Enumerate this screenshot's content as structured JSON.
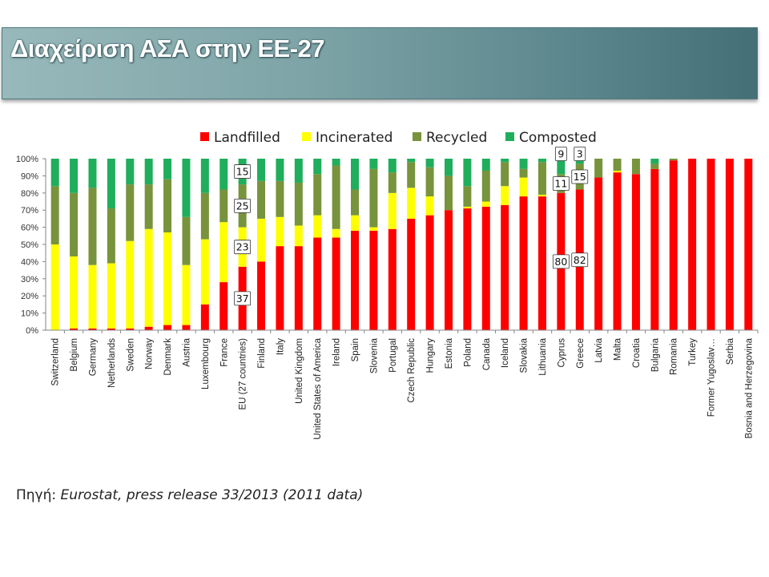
{
  "slide": {
    "title": "Διαχείριση ΑΣΑ στην ΕΕ-27",
    "source_label": "Πηγή",
    "source_sep": ": ",
    "source_text": "Eurostat, press release 33/2013 (2011 data)"
  },
  "chart_data": {
    "type": "bar",
    "stacked": true,
    "normalized_percent": true,
    "ylim": [
      0,
      100
    ],
    "y_ticks": [
      "0%",
      "10%",
      "20%",
      "30%",
      "40%",
      "50%",
      "60%",
      "70%",
      "80%",
      "90%",
      "100%"
    ],
    "grid": false,
    "legend_position": "top",
    "categories": [
      "Switzerland",
      "Belgium",
      "Germany",
      "Netherlands",
      "Sweden",
      "Norway",
      "Denmark",
      "Austria",
      "Luxembourg",
      "France",
      "EU (27 countries)",
      "Finland",
      "Italy",
      "United Kingdom",
      "United States of America",
      "Ireland",
      "Spain",
      "Slovenia",
      "Portugal",
      "Czech Republic",
      "Hungary",
      "Estonia",
      "Poland",
      "Canada",
      "Iceland",
      "Slovakia",
      "Lithuania",
      "Cyprus",
      "Greece",
      "Latvia",
      "Malta",
      "Croatia",
      "Bulgaria",
      "Romania",
      "Turkey",
      "Former Yugoslav…",
      "Serbia",
      "Bosnia and Herzegovina"
    ],
    "series": [
      {
        "name": "Landfilled",
        "color": "#ff0000",
        "values": [
          0,
          1,
          1,
          1,
          1,
          2,
          3,
          3,
          15,
          28,
          37,
          40,
          49,
          49,
          54,
          54,
          58,
          58,
          59,
          65,
          67,
          70,
          71,
          72,
          73,
          78,
          78,
          80,
          82,
          89,
          92,
          91,
          94,
          99,
          100,
          100,
          100,
          100
        ]
      },
      {
        "name": "Incinerated",
        "color": "#ffff00",
        "values": [
          50,
          42,
          37,
          38,
          51,
          57,
          54,
          35,
          38,
          35,
          23,
          25,
          17,
          12,
          13,
          5,
          9,
          2,
          21,
          18,
          11,
          0,
          1,
          3,
          11,
          11,
          1,
          0,
          0,
          0,
          1,
          0,
          0,
          0,
          0,
          0,
          0,
          0
        ]
      },
      {
        "name": "Recycled",
        "color": "#77933c",
        "values": [
          34,
          37,
          45,
          32,
          33,
          26,
          31,
          28,
          27,
          19,
          25,
          22,
          21,
          25,
          24,
          37,
          15,
          34,
          12,
          15,
          17,
          20,
          12,
          18,
          14,
          5,
          19,
          11,
          15,
          11,
          7,
          9,
          3,
          1,
          0,
          0,
          0,
          0
        ]
      },
      {
        "name": "Composted",
        "color": "#1fae5c",
        "values": [
          16,
          20,
          17,
          29,
          15,
          15,
          12,
          34,
          20,
          18,
          15,
          13,
          13,
          14,
          9,
          4,
          18,
          6,
          8,
          2,
          5,
          10,
          16,
          7,
          2,
          6,
          2,
          9,
          3,
          0,
          0,
          0,
          3,
          0,
          0,
          0,
          0,
          0
        ]
      }
    ],
    "annotations": [
      {
        "category": "EU (27 countries)",
        "series": "Landfilled",
        "text": "37"
      },
      {
        "category": "EU (27 countries)",
        "series": "Incinerated",
        "text": "23"
      },
      {
        "category": "EU (27 countries)",
        "series": "Recycled",
        "text": "25"
      },
      {
        "category": "EU (27 countries)",
        "series": "Composted",
        "text": "15"
      },
      {
        "category": "Cyprus",
        "series": "Landfilled",
        "text": "80"
      },
      {
        "category": "Cyprus",
        "series": "Recycled",
        "text": "11"
      },
      {
        "category": "Cyprus",
        "series": "Composted",
        "text": "9",
        "outside": true
      },
      {
        "category": "Greece",
        "series": "Landfilled",
        "text": "82"
      },
      {
        "category": "Greece",
        "series": "Recycled",
        "text": "15"
      },
      {
        "category": "Greece",
        "series": "Composted",
        "text": "3",
        "outside": true
      }
    ]
  }
}
